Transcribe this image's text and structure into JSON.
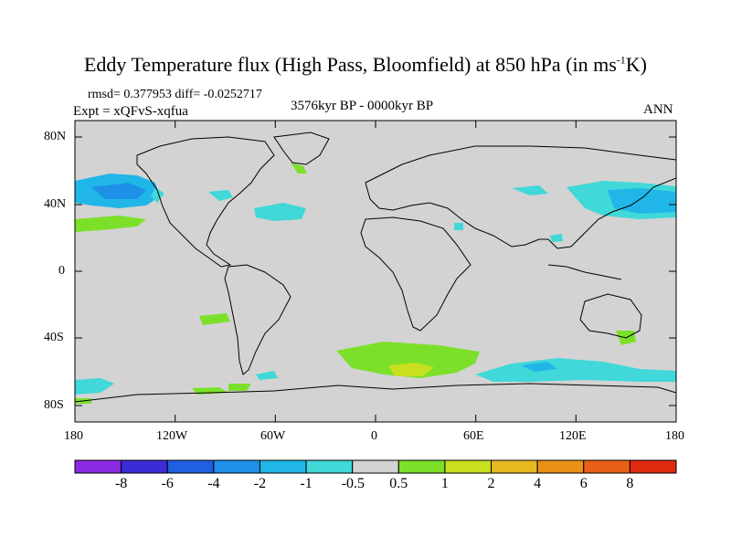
{
  "title": {
    "prefix": "Eddy Temperature flux (High Pass, Bloomfield) at 850 hPa (in ms",
    "sup": "-1",
    "suffix": "K)"
  },
  "stats_line": "rmsd= 0.377953 diff= -0.0252717",
  "expt_line": "Expt = xQFvS-xqfua",
  "period_line": "3576kyr BP - 0000kyr BP",
  "season": "ANN",
  "map": {
    "projection": "cylindrical equidistant",
    "lon_range": [
      -180,
      180
    ],
    "lat_range": [
      -90,
      90
    ],
    "background_color": "#d3d3d3",
    "x_tick_labels": [
      "180",
      "120W",
      "60W",
      "0",
      "60E",
      "120E",
      "180"
    ],
    "y_tick_labels": [
      "80N",
      "40N",
      "0",
      "40S",
      "80S"
    ]
  },
  "colorbar": {
    "labels": [
      "-8",
      "-6",
      "-4",
      "-2",
      "-1",
      "-0.5",
      "0.5",
      "1",
      "2",
      "4",
      "6",
      "8"
    ],
    "colors": [
      "#8a2be2",
      "#3c2cd8",
      "#1f5fe0",
      "#1e90e8",
      "#20b7e8",
      "#40d8d8",
      "#d3d3d3",
      "#7ce02a",
      "#c8e020",
      "#e8b820",
      "#e89018",
      "#e86018",
      "#e02a10"
    ]
  }
}
